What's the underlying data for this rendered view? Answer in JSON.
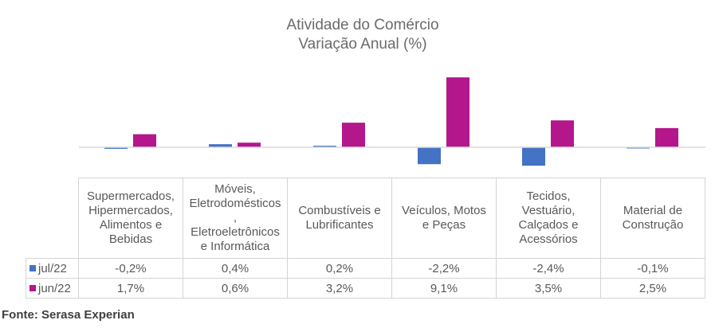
{
  "chart_data": {
    "type": "bar",
    "title": "Atividade do Comércio",
    "subtitle": "Variação Anual (%)",
    "categories": [
      "Supermercados,\nHipermercados,\nAlimentos e\nBebidas",
      "Móveis,\nEletrodomésticos\n,\nEletroeletrônicos\ne Informática",
      "Combustíveis e\nLubrificantes",
      "Veículos, Motos\ne Peças",
      "Tecidos,\nVestuário,\nCalçados e\nAcessórios",
      "Material de\nConstrução"
    ],
    "series": [
      {
        "name": "jul/22",
        "color": "#4472c4",
        "values": [
          -0.2,
          0.4,
          0.2,
          -2.2,
          -2.4,
          -0.1
        ],
        "labels": [
          "-0,2%",
          "0,4%",
          "0,2%",
          "-2,2%",
          "-2,4%",
          "-0,1%"
        ]
      },
      {
        "name": "jun/22",
        "color": "#b4168c",
        "values": [
          1.7,
          0.6,
          3.2,
          9.1,
          3.5,
          2.5
        ],
        "labels": [
          "1,7%",
          "0,6%",
          "3,2%",
          "9,1%",
          "3,5%",
          "2,5%"
        ]
      }
    ],
    "grid": false,
    "legend": "data-table"
  },
  "footer": {
    "source": "Fonte: Serasa Experian"
  }
}
